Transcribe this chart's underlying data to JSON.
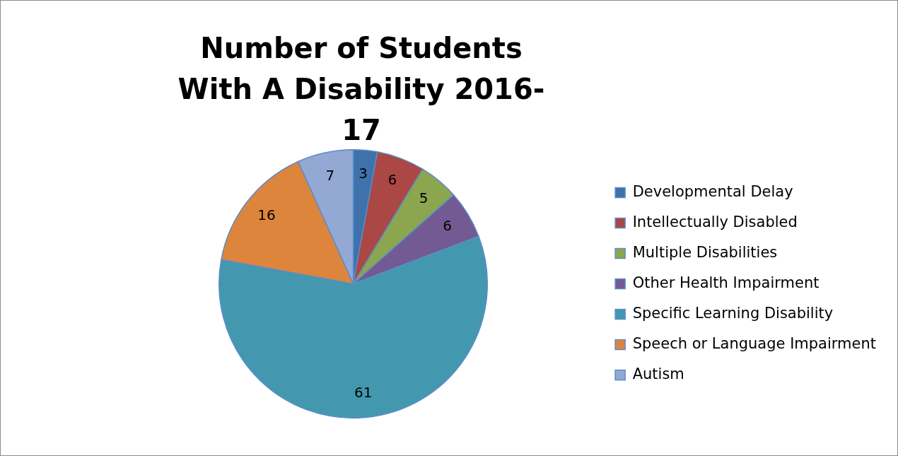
{
  "chart_data": {
    "type": "pie",
    "title": "Number of Students With A Disability 2016-17",
    "categories": [
      "Developmental Delay",
      "Intellectually Disabled",
      "Multiple Disabilities",
      "Other Health Impairment",
      "Specific Learning Disability",
      "Speech or Language Impairment",
      "Autism"
    ],
    "values": [
      3,
      6,
      5,
      6,
      61,
      16,
      7
    ],
    "colors": [
      "#3f72ab",
      "#ab4744",
      "#8ba64f",
      "#735a92",
      "#4398b0",
      "#dd853c",
      "#93a9d4"
    ],
    "data_labels": true,
    "legend": "right"
  }
}
